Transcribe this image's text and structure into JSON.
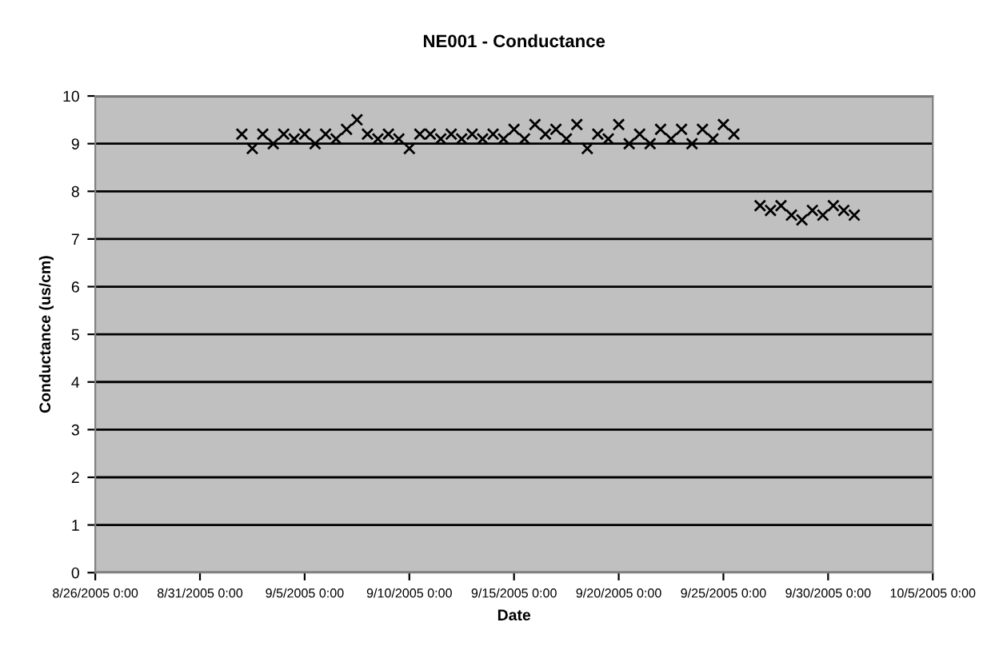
{
  "chart_data": {
    "type": "scatter",
    "title": "NE001 - Conductance",
    "xlabel": "Date",
    "ylabel": "Conductance (us/cm)",
    "marker": "cross",
    "grid": "y",
    "xlim": [
      "2005-08-26",
      "2005-10-05"
    ],
    "xticks": [
      {
        "value": "2005-08-26",
        "label": "8/26/2005 0:00"
      },
      {
        "value": "2005-08-31",
        "label": "8/31/2005 0:00"
      },
      {
        "value": "2005-09-05",
        "label": "9/5/2005 0:00"
      },
      {
        "value": "2005-09-10",
        "label": "9/10/2005 0:00"
      },
      {
        "value": "2005-09-15",
        "label": "9/15/2005 0:00"
      },
      {
        "value": "2005-09-20",
        "label": "9/20/2005 0:00"
      },
      {
        "value": "2005-09-25",
        "label": "9/25/2005 0:00"
      },
      {
        "value": "2005-09-30",
        "label": "9/30/2005 0:00"
      },
      {
        "value": "2005-10-05",
        "label": "10/5/2005 0:00"
      }
    ],
    "ylim": [
      0,
      10
    ],
    "yticks": [
      0,
      1,
      2,
      3,
      4,
      5,
      6,
      7,
      8,
      9,
      10
    ],
    "series": [
      {
        "color": "#000000",
        "x": [
          "2005-09-02T00:00",
          "2005-09-02T12:00",
          "2005-09-03T00:00",
          "2005-09-03T12:00",
          "2005-09-04T00:00",
          "2005-09-04T12:00",
          "2005-09-05T00:00",
          "2005-09-05T12:00",
          "2005-09-06T00:00",
          "2005-09-06T12:00",
          "2005-09-07T00:00",
          "2005-09-07T12:00",
          "2005-09-08T00:00",
          "2005-09-08T12:00",
          "2005-09-09T00:00",
          "2005-09-09T12:00",
          "2005-09-10T00:00",
          "2005-09-10T12:00",
          "2005-09-11T00:00",
          "2005-09-11T12:00",
          "2005-09-12T00:00",
          "2005-09-12T12:00",
          "2005-09-13T00:00",
          "2005-09-13T12:00",
          "2005-09-14T00:00",
          "2005-09-14T12:00",
          "2005-09-15T00:00",
          "2005-09-15T12:00",
          "2005-09-16T00:00",
          "2005-09-16T12:00",
          "2005-09-17T00:00",
          "2005-09-17T12:00",
          "2005-09-18T00:00",
          "2005-09-18T12:00",
          "2005-09-19T00:00",
          "2005-09-19T12:00",
          "2005-09-20T00:00",
          "2005-09-20T12:00",
          "2005-09-21T00:00",
          "2005-09-21T12:00",
          "2005-09-22T00:00",
          "2005-09-22T12:00",
          "2005-09-23T00:00",
          "2005-09-23T12:00",
          "2005-09-24T00:00",
          "2005-09-24T12:00",
          "2005-09-25T00:00",
          "2005-09-25T12:00",
          "2005-09-26T18:00",
          "2005-09-27T06:00",
          "2005-09-27T18:00",
          "2005-09-28T06:00",
          "2005-09-28T18:00",
          "2005-09-29T06:00",
          "2005-09-29T18:00",
          "2005-09-30T06:00",
          "2005-09-30T18:00",
          "2005-10-01T06:00"
        ],
        "values": [
          9.2,
          8.9,
          9.2,
          9.0,
          9.2,
          9.1,
          9.2,
          9.0,
          9.2,
          9.1,
          9.3,
          9.5,
          9.2,
          9.1,
          9.2,
          9.1,
          8.9,
          9.2,
          9.2,
          9.1,
          9.2,
          9.1,
          9.2,
          9.1,
          9.2,
          9.1,
          9.3,
          9.1,
          9.4,
          9.2,
          9.3,
          9.1,
          9.4,
          8.9,
          9.2,
          9.1,
          9.4,
          9.0,
          9.2,
          9.0,
          9.3,
          9.1,
          9.3,
          9.0,
          9.3,
          9.1,
          9.4,
          9.2,
          7.7,
          7.6,
          7.7,
          7.5,
          7.4,
          7.6,
          7.5,
          7.7,
          7.6,
          7.5
        ]
      }
    ]
  }
}
